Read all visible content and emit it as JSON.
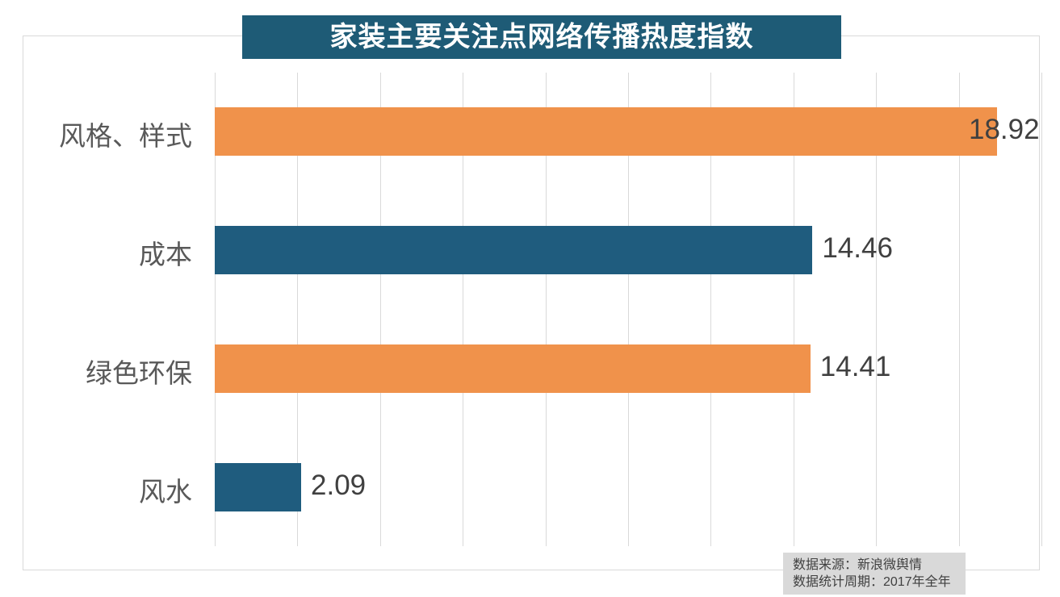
{
  "title": {
    "text": "家装主要关注点网络传播热度指数"
  },
  "chart_data": {
    "type": "bar",
    "orientation": "horizontal",
    "title": "家装主要关注点网络传播热度指数",
    "categories": [
      "风格、样式",
      "成本",
      "绿色环保",
      "风水"
    ],
    "values": [
      18.92,
      14.46,
      14.41,
      2.09
    ],
    "value_labels": [
      "18.92",
      "14.46",
      "14.41",
      "2.09"
    ],
    "xlim": [
      0,
      20
    ],
    "gridline_step": 2,
    "grid": true,
    "legend": false,
    "bar_colors": [
      "#F0924B",
      "#1F5C7E",
      "#F0924B",
      "#1F5C7E"
    ]
  },
  "colors": {
    "orange": "#F0924B",
    "teal": "#1F5C7E",
    "title_bg": "#1E5B76",
    "grid": "#D9D9D9",
    "category_text": "#595959",
    "value_text": "#404040",
    "source_bg": "#D9D9D9",
    "source_text": "#404040"
  },
  "source": {
    "line1": "数据来源：新浪微舆情",
    "line2": "数据统计周期：2017年全年"
  }
}
